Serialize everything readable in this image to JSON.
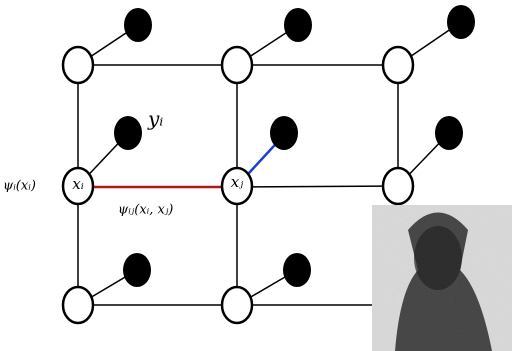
{
  "labels": {
    "observed": "yᵢ",
    "node_i": "xᵢ",
    "node_j": "xⱼ",
    "unary": "ψᵢ(xᵢ)",
    "pairwise": "ψᵢⱼ(xᵢ, xⱼ)"
  }
}
